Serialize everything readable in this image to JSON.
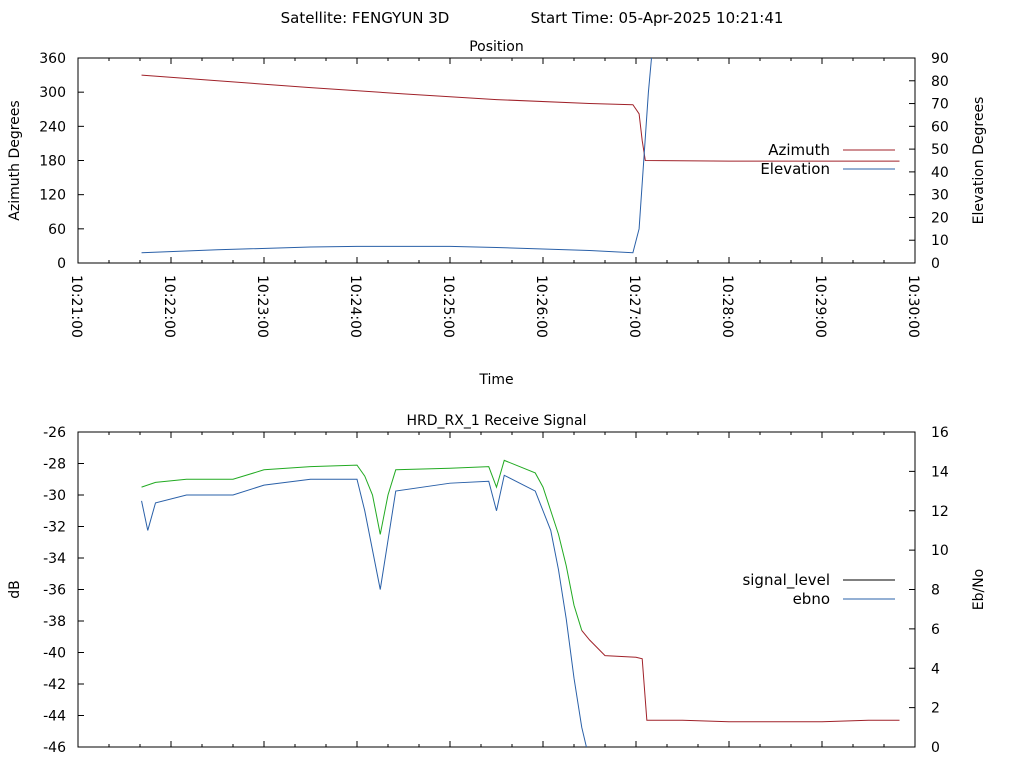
{
  "header": {
    "satellite": "Satellite: FENGYUN 3D",
    "start_time": "Start Time: 05-Apr-2025 10:21:41"
  },
  "chart_data": [
    {
      "type": "line",
      "title": "Position",
      "xlabel": "Time",
      "ylabel": "Azimuth Degrees",
      "y2label": "Elevation Degrees",
      "xlim": [
        "10:21:00",
        "10:30:00"
      ],
      "x_ticks": [
        "10:21:00",
        "10:22:00",
        "10:23:00",
        "10:24:00",
        "10:25:00",
        "10:26:00",
        "10:27:00",
        "10:28:00",
        "10:29:00",
        "10:30:00"
      ],
      "ylim": [
        0,
        360
      ],
      "y_ticks": [
        0,
        60,
        120,
        180,
        240,
        300,
        360
      ],
      "y2lim": [
        0,
        90
      ],
      "y2_ticks": [
        0,
        10,
        20,
        30,
        40,
        50,
        60,
        70,
        80,
        90
      ],
      "legend_position": "right",
      "grid": false,
      "series": [
        {
          "name": "Azimuth",
          "axis": "left",
          "color": "#a0222a",
          "points": [
            [
              "10:21:41",
              330
            ],
            [
              "10:22:30",
              320
            ],
            [
              "10:23:30",
              308
            ],
            [
              "10:24:30",
              297
            ],
            [
              "10:25:30",
              287
            ],
            [
              "10:26:30",
              280
            ],
            [
              "10:26:58",
              278
            ],
            [
              "10:27:02",
              262
            ],
            [
              "10:27:04",
              215
            ],
            [
              "10:27:06",
              180
            ],
            [
              "10:28:00",
              179
            ],
            [
              "10:29:00",
              179
            ],
            [
              "10:29:50",
              179
            ]
          ]
        },
        {
          "name": "Elevation",
          "axis": "right",
          "color": "#2a60a8",
          "points": [
            [
              "10:21:41",
              4.5
            ],
            [
              "10:22:30",
              5.8
            ],
            [
              "10:23:30",
              7.0
            ],
            [
              "10:24:00",
              7.3
            ],
            [
              "10:25:00",
              7.3
            ],
            [
              "10:25:30",
              6.8
            ],
            [
              "10:26:30",
              5.5
            ],
            [
              "10:26:58",
              4.5
            ],
            [
              "10:27:02",
              15
            ],
            [
              "10:27:05",
              45
            ],
            [
              "10:27:08",
              75
            ],
            [
              "10:27:10",
              90
            ]
          ]
        }
      ]
    },
    {
      "type": "line",
      "title": "HRD_RX_1 Receive Signal",
      "ylabel": "dB",
      "y2label": "Eb/No",
      "ylim": [
        -46,
        -26
      ],
      "y_ticks": [
        -46,
        -44,
        -42,
        -40,
        -38,
        -36,
        -34,
        -32,
        -30,
        -28,
        -26
      ],
      "y2lim": [
        0,
        16
      ],
      "y2_ticks": [
        0,
        2,
        4,
        6,
        8,
        10,
        12,
        14,
        16
      ],
      "legend_position": "right",
      "grid": false,
      "series": [
        {
          "name": "signal_level",
          "axis": "left",
          "color": "#a0222a",
          "color_alt": "#22aa22",
          "points": [
            [
              "10:21:41",
              -29.5
            ],
            [
              "10:21:50",
              -29.2
            ],
            [
              "10:22:10",
              -29.0
            ],
            [
              "10:22:40",
              -29.0
            ],
            [
              "10:23:00",
              -28.4
            ],
            [
              "10:23:30",
              -28.2
            ],
            [
              "10:24:00",
              -28.1
            ],
            [
              "10:24:05",
              -28.8
            ],
            [
              "10:24:10",
              -30.0
            ],
            [
              "10:24:15",
              -32.5
            ],
            [
              "10:24:20",
              -30.0
            ],
            [
              "10:24:25",
              -28.4
            ],
            [
              "10:25:00",
              -28.3
            ],
            [
              "10:25:25",
              -28.2
            ],
            [
              "10:25:30",
              -29.5
            ],
            [
              "10:25:35",
              -27.8
            ],
            [
              "10:25:55",
              -28.6
            ],
            [
              "10:26:00",
              -29.5
            ],
            [
              "10:26:05",
              -31.0
            ],
            [
              "10:26:10",
              -32.5
            ],
            [
              "10:26:15",
              -34.5
            ],
            [
              "10:26:20",
              -37.0
            ],
            [
              "10:26:25",
              -38.6
            ],
            [
              "10:26:30",
              -39.2
            ],
            [
              "10:26:40",
              -40.2
            ],
            [
              "10:27:00",
              -40.3
            ],
            [
              "10:27:04",
              -40.4
            ],
            [
              "10:27:07",
              -44.3
            ],
            [
              "10:27:30",
              -44.3
            ],
            [
              "10:28:00",
              -44.4
            ],
            [
              "10:28:30",
              -44.4
            ],
            [
              "10:29:00",
              -44.4
            ],
            [
              "10:29:30",
              -44.3
            ],
            [
              "10:29:50",
              -44.3
            ]
          ]
        },
        {
          "name": "ebno",
          "axis": "right",
          "color": "#2a60a8",
          "points": [
            [
              "10:21:41",
              12.5
            ],
            [
              "10:21:45",
              11.0
            ],
            [
              "10:21:50",
              12.4
            ],
            [
              "10:22:10",
              12.8
            ],
            [
              "10:22:40",
              12.8
            ],
            [
              "10:23:00",
              13.3
            ],
            [
              "10:23:30",
              13.6
            ],
            [
              "10:24:00",
              13.6
            ],
            [
              "10:24:05",
              12.0
            ],
            [
              "10:24:10",
              10.0
            ],
            [
              "10:24:15",
              8.0
            ],
            [
              "10:24:20",
              10.5
            ],
            [
              "10:24:25",
              13.0
            ],
            [
              "10:25:00",
              13.4
            ],
            [
              "10:25:25",
              13.5
            ],
            [
              "10:25:30",
              12.0
            ],
            [
              "10:25:35",
              13.8
            ],
            [
              "10:25:55",
              13.0
            ],
            [
              "10:26:00",
              12.0
            ],
            [
              "10:26:05",
              11.0
            ],
            [
              "10:26:10",
              9.0
            ],
            [
              "10:26:15",
              6.5
            ],
            [
              "10:26:20",
              3.5
            ],
            [
              "10:26:25",
              1.0
            ],
            [
              "10:26:28",
              0
            ]
          ]
        }
      ]
    }
  ]
}
